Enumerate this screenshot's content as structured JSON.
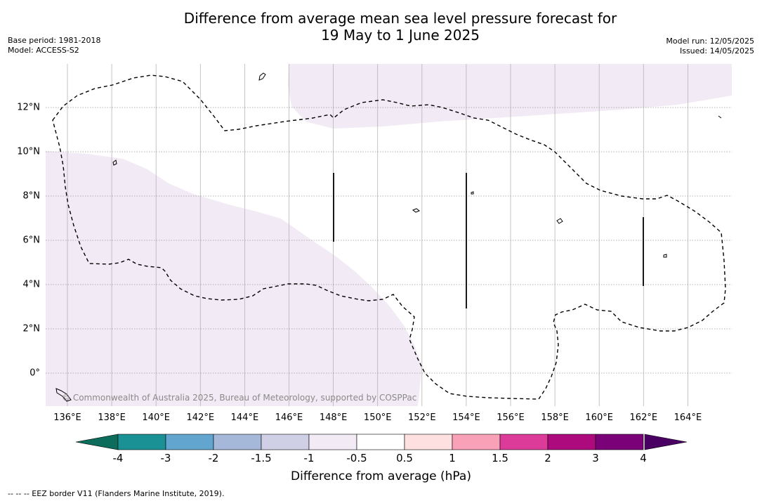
{
  "header": {
    "title_line1": "Difference from average mean sea level pressure forecast for",
    "title_line2": "19 May to 1 June 2025",
    "base_period": "Base period: 1981-2018",
    "model": "Model: ACCESS-S2",
    "model_run": "Model run: 12/05/2025",
    "issued": "Issued: 14/05/2025"
  },
  "map": {
    "x_ticks": [
      "136°E",
      "138°E",
      "140°E",
      "142°E",
      "144°E",
      "146°E",
      "148°E",
      "150°E",
      "152°E",
      "154°E",
      "156°E",
      "158°E",
      "160°E",
      "162°E",
      "164°E"
    ],
    "y_ticks": [
      "12°N",
      "10°N",
      "8°N",
      "6°N",
      "4°N",
      "2°N",
      "0°"
    ],
    "copyright": "© Commonwealth of Australia 2025, Bureau of Meteorology, supported by COSPPac",
    "shaded_category": "-1 to -0.5",
    "shaded_color": "#f2eaf4",
    "eez_line_style": "dashed",
    "grid": true
  },
  "colorbar": {
    "label": "Difference from average (hPa)",
    "ticks": [
      "-4",
      "-3",
      "-2",
      "-1.5",
      "-1",
      "-0.5",
      "0.5",
      "1",
      "1.5",
      "2",
      "3",
      "4"
    ],
    "colors": [
      "#1a9195",
      "#62a6cf",
      "#a5b8da",
      "#cfcfe6",
      "#f2eaf4",
      "#ffffff",
      "#fee0e0",
      "#f9a1b7",
      "#dd3b9a",
      "#ad0a7e",
      "#7a0177"
    ],
    "under_color": "#0d6d5c",
    "over_color": "#4a0063"
  },
  "footer": {
    "eez_legend": "--  --  -- EEZ border V11 (Flanders Marine Institute, 2019)."
  }
}
